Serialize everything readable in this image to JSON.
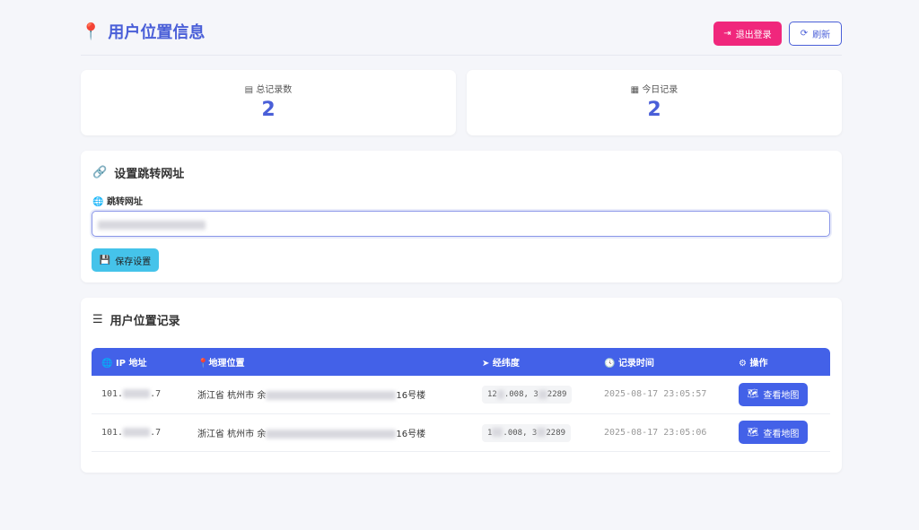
{
  "header": {
    "title": "用户位置信息",
    "logout": "退出登录",
    "refresh": "刷新"
  },
  "stats": [
    {
      "label": "总记录数",
      "value": "2"
    },
    {
      "label": "今日记录",
      "value": "2"
    }
  ],
  "redirect": {
    "title": "设置跳转网址",
    "field_label": "跳转网址",
    "save": "保存设置"
  },
  "records": {
    "title": "用户位置记录",
    "columns": [
      "IP 地址",
      "地理位置",
      "经纬度",
      "记录时间",
      "操作"
    ],
    "rows": [
      {
        "ip_start": "101.",
        "ip_end": ".7",
        "loc_start": "浙江省 杭州市 余",
        "loc_end": "16号楼",
        "lng_start": "12",
        "lng_end": ".008, 3",
        "lat_end": "2289",
        "time": "2025-08-17 23:05:57",
        "action": "查看地图"
      },
      {
        "ip_start": "101.",
        "ip_end": ".7",
        "loc_start": "浙江省 杭州市 余",
        "loc_end": "16号楼",
        "lng_start": "1",
        "lng_end": ".008, 3",
        "lat_end": "2289",
        "time": "2025-08-17 23:05:06",
        "action": "查看地图"
      }
    ]
  },
  "colors": {
    "primary": "#4361e8",
    "danger": "#f0277c",
    "info": "#45c3ea"
  }
}
